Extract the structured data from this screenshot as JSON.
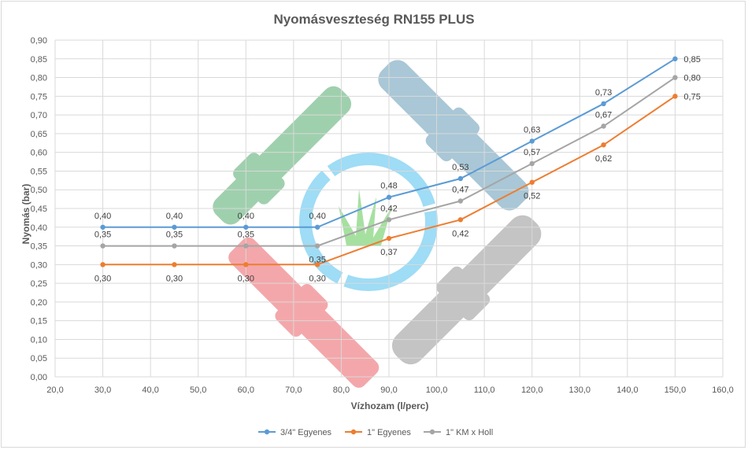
{
  "chart_data": {
    "type": "line",
    "title": "Nyomásveszteség RN155 PLUS",
    "xlabel": "Vízhozam (l/perc)",
    "ylabel": "Nyomás (bar)",
    "xlim": [
      20,
      160
    ],
    "ylim": [
      0,
      0.9
    ],
    "x_ticks": [
      "20,0",
      "30,0",
      "40,0",
      "50,0",
      "60,0",
      "70,0",
      "80,0",
      "90,0",
      "100,0",
      "110,0",
      "120,0",
      "130,0",
      "140,0",
      "150,0",
      "160,0"
    ],
    "y_ticks": [
      "0,00",
      "0,05",
      "0,10",
      "0,15",
      "0,20",
      "0,25",
      "0,30",
      "0,35",
      "0,40",
      "0,45",
      "0,50",
      "0,55",
      "0,60",
      "0,65",
      "0,70",
      "0,75",
      "0,80",
      "0,85",
      "0,90"
    ],
    "grid": true,
    "legend_position": "bottom",
    "x": [
      30,
      45,
      60,
      75,
      90,
      105,
      120,
      135,
      150
    ],
    "series": [
      {
        "name": "3/4\" Egyenes",
        "color": "#5b9bd5",
        "values": [
          0.4,
          0.4,
          0.4,
          0.4,
          0.48,
          0.53,
          0.63,
          0.73,
          0.85
        ],
        "labels": [
          "0,40",
          "0,40",
          "0,40",
          "0,40",
          "0,48",
          "0,53",
          "0,63",
          "0,73",
          "0,85"
        ]
      },
      {
        "name": "1\" Egyenes",
        "color": "#ed7d31",
        "values": [
          0.3,
          0.3,
          0.3,
          0.3,
          0.37,
          0.42,
          0.52,
          0.62,
          0.75
        ],
        "labels": [
          "0,30",
          "0,30",
          "0,30",
          "0,30",
          "0,37",
          "0,42",
          "0,52",
          "0,62",
          "0,75"
        ]
      },
      {
        "name": "1\" KM x Holl",
        "color": "#a5a5a5",
        "values": [
          0.35,
          0.35,
          0.35,
          0.35,
          0.42,
          0.47,
          0.57,
          0.67,
          0.8
        ],
        "labels": [
          "0,35",
          "0,35",
          "0,35",
          "0,35",
          "0,42",
          "0,47",
          "0,57",
          "0,67",
          "0,80"
        ]
      }
    ]
  },
  "watermark": {
    "colors": [
      "#9fd0ad",
      "#a9c7d6",
      "#f4a7aa",
      "#c4c4c4",
      "#9fdcf5",
      "#a6e0a0"
    ]
  }
}
